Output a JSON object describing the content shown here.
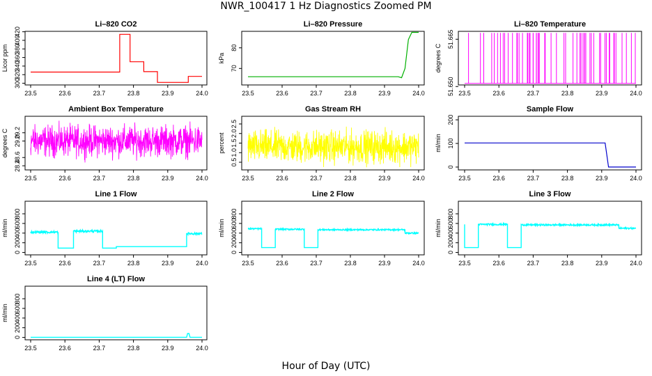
{
  "figure": {
    "title": "NWR_100417  1 Hz Diagnostics Zoomed PM",
    "xlabel": "Hour of Day (UTC)"
  },
  "chart_data": [
    {
      "type": "line",
      "title": "Li–820 CO2",
      "ylabel": "Licor ppm",
      "color": "#ff0000",
      "xlim": [
        23.5,
        24.0
      ],
      "ylim": [
        296,
        421
      ],
      "xticks": [
        "23.5",
        "23.6",
        "23.7",
        "23.8",
        "23.9",
        "24.0"
      ],
      "yticks": [
        "300",
        "320",
        "340",
        "360",
        "380",
        "400",
        "420"
      ],
      "series": [
        {
          "x": [
            23.5,
            23.75,
            23.76,
            23.76,
            23.79,
            23.79,
            23.83,
            23.83,
            23.87,
            23.87,
            23.96,
            23.96,
            24.0
          ],
          "values": [
            326,
            326,
            326,
            414,
            414,
            350,
            350,
            327,
            327,
            302,
            302,
            316,
            316
          ]
        }
      ]
    },
    {
      "type": "line",
      "title": "Li–820 Pressure",
      "ylabel": "kPa",
      "color": "#00b000",
      "xlim": [
        23.5,
        24.0
      ],
      "ylim": [
        62,
        88
      ],
      "xticks": [
        "23.5",
        "23.6",
        "23.7",
        "23.8",
        "23.9",
        "24.0"
      ],
      "yticks": [
        "70",
        "80"
      ],
      "series": [
        {
          "x": [
            23.5,
            23.94,
            23.95,
            23.96,
            23.97,
            23.98,
            24.0
          ],
          "values": [
            66,
            66,
            65.5,
            70,
            84,
            87.5,
            87.5
          ]
        }
      ]
    },
    {
      "type": "line",
      "title": "Li–820 Temperature",
      "ylabel": "degrees C",
      "color": "#ff00ff",
      "xlim": [
        23.5,
        24.0
      ],
      "ylim": [
        51.6505,
        51.6675
      ],
      "xticks": [
        "23.5",
        "23.6",
        "23.7",
        "23.8",
        "23.9",
        "24.0"
      ],
      "yticks": [
        "51.650",
        "51.665"
      ],
      "series": [
        {
          "range": [
            51.651,
            51.667
          ]
        }
      ]
    },
    {
      "type": "line",
      "title": "Ambient Box Temperature",
      "ylabel": "degrees C",
      "color": "#ff00ff",
      "xlim": [
        23.5,
        24.0
      ],
      "ylim": [
        28.3,
        29.6
      ],
      "xticks": [
        "23.5",
        "23.6",
        "23.7",
        "23.8",
        "23.9",
        "24.0"
      ],
      "yticks": [
        "28.4",
        "28.6",
        "29.0",
        "29.2"
      ],
      "series": [
        {
          "mean": 29.0,
          "range": [
            28.4,
            29.5
          ]
        }
      ]
    },
    {
      "type": "line",
      "title": "Gas Stream RH",
      "ylabel": "percent",
      "color": "#ffff00",
      "xlim": [
        23.5,
        24.0
      ],
      "ylim": [
        0.1,
        2.9
      ],
      "xticks": [
        "23.5",
        "23.6",
        "23.7",
        "23.8",
        "23.9",
        "24.0"
      ],
      "yticks": [
        "0.5",
        "1.0",
        "1.5",
        "2.0",
        "2.5"
      ],
      "series": [
        {
          "mean": 1.3,
          "range": [
            0.2,
            2.7
          ]
        }
      ]
    },
    {
      "type": "line",
      "title": "Sample Flow",
      "ylabel": "ml/min",
      "color": "#0000cc",
      "xlim": [
        23.5,
        24.0
      ],
      "ylim": [
        -12,
        215
      ],
      "xticks": [
        "23.5",
        "23.6",
        "23.7",
        "23.8",
        "23.9",
        "24.0"
      ],
      "yticks": [
        "0",
        "100",
        "200"
      ],
      "series": [
        {
          "x": [
            23.5,
            23.91,
            23.92,
            24.0
          ],
          "values": [
            102,
            102,
            0,
            0
          ]
        }
      ]
    },
    {
      "type": "line",
      "title": "Line 1 Flow",
      "ylabel": "ml/min",
      "color": "#00ffff",
      "xlim": [
        23.5,
        24.0
      ],
      "ylim": [
        -50,
        1060
      ],
      "xticks": [
        "23.5",
        "23.6",
        "23.7",
        "23.8",
        "23.9",
        "24.0"
      ],
      "yticks": [
        "0",
        "200",
        "400",
        "600",
        "800"
      ],
      "series": [
        {
          "x": [
            23.5,
            23.58,
            23.58,
            23.625,
            23.625,
            23.71,
            23.71,
            23.75,
            23.75,
            23.955,
            23.955,
            24.0
          ],
          "values": [
            420,
            420,
            90,
            90,
            440,
            440,
            90,
            90,
            120,
            120,
            390,
            390
          ]
        }
      ]
    },
    {
      "type": "line",
      "title": "Line 2 Flow",
      "ylabel": "ml/min",
      "color": "#00ffff",
      "xlim": [
        23.5,
        24.0
      ],
      "ylim": [
        -50,
        1060
      ],
      "xticks": [
        "23.5",
        "23.6",
        "23.7",
        "23.8",
        "23.9",
        "24.0"
      ],
      "yticks": [
        "0",
        "200",
        "400",
        "600",
        "800"
      ],
      "series": [
        {
          "x": [
            23.5,
            23.54,
            23.54,
            23.58,
            23.58,
            23.665,
            23.665,
            23.705,
            23.705,
            23.96,
            23.96,
            24.0
          ],
          "values": [
            490,
            490,
            100,
            100,
            480,
            480,
            100,
            100,
            470,
            470,
            400,
            400
          ]
        }
      ]
    },
    {
      "type": "line",
      "title": "Line 3 Flow",
      "ylabel": "ml/min",
      "color": "#00ffff",
      "xlim": [
        23.5,
        24.0
      ],
      "ylim": [
        -50,
        1060
      ],
      "xticks": [
        "23.5",
        "23.6",
        "23.7",
        "23.8",
        "23.9",
        "24.0"
      ],
      "yticks": [
        "0",
        "200",
        "400",
        "600",
        "800"
      ],
      "series": [
        {
          "x": [
            23.5,
            23.5,
            23.54,
            23.54,
            23.625,
            23.625,
            23.665,
            23.665,
            23.95,
            23.95,
            24.0
          ],
          "values": [
            580,
            100,
            100,
            580,
            580,
            100,
            100,
            570,
            570,
            500,
            500
          ]
        }
      ]
    },
    {
      "type": "line",
      "title": "Line 4 (LT) Flow",
      "ylabel": "ml/min",
      "color": "#00ffff",
      "xlim": [
        23.5,
        24.0
      ],
      "ylim": [
        -50,
        1060
      ],
      "xticks": [
        "23.5",
        "23.6",
        "23.7",
        "23.8",
        "23.9",
        "24.0"
      ],
      "yticks": [
        "0",
        "200",
        "400",
        "600",
        "800"
      ],
      "series": [
        {
          "x": [
            23.5,
            23.955,
            23.958,
            23.962,
            23.965,
            24.0
          ],
          "values": [
            2,
            2,
            80,
            80,
            2,
            2
          ]
        }
      ]
    }
  ]
}
